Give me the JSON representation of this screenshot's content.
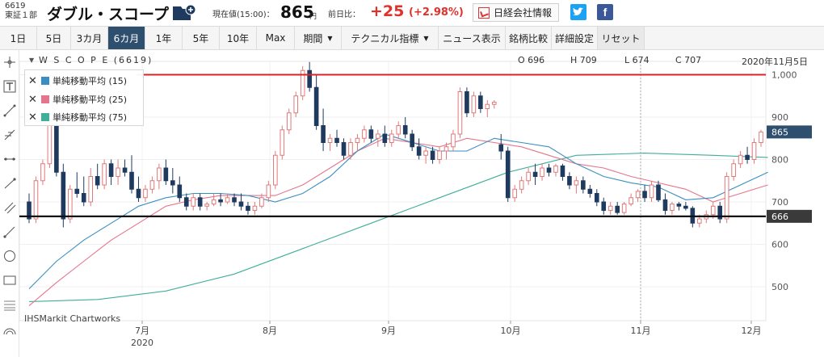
{
  "header": {
    "code": "6619",
    "market": "東証１部",
    "name": "ダブル・スコープ",
    "price_label": "現在値(15:00)：",
    "price": "865",
    "price_unit": "円",
    "change_label": "前日比：",
    "change": "+25",
    "change_pct": "(+2.98%)",
    "news_button": "日経会社情報",
    "twitter_icon": "twitter-icon",
    "facebook_icon": "facebook-icon",
    "colors": {
      "up": "#e0312b",
      "nav_active": "#2f4f6f"
    }
  },
  "toolbar": {
    "items": [
      "1日",
      "5日",
      "3カ月",
      "6カ月",
      "1年",
      "5年",
      "10年",
      "Max",
      "期間",
      "テクニカル指標",
      "ニュース表示",
      "銘柄比較",
      "詳細設定",
      "リセット"
    ],
    "active": "6カ月"
  },
  "tools": [
    "crosshair-icon",
    "text-icon",
    "line-icon",
    "fib-icon",
    "hline-icon",
    "trend-icon",
    "channel-icon",
    "ray-icon",
    "circle-icon",
    "rectangle-icon",
    "fibfan-icon",
    "arc-icon"
  ],
  "chart_ui": {
    "ticker": "W S C O P E (6619)",
    "ohlc": {
      "O": "O 696",
      "H": "H 709",
      "L": "L 674",
      "C": "C 707"
    },
    "date": "2020年11月5日",
    "watermark": "IHSMarkit Chartworks",
    "legend": [
      {
        "label": "単純移動平均 (15)",
        "color": "#3a8fc2"
      },
      {
        "label": "単純移動平均 (25)",
        "color": "#e6748c"
      },
      {
        "label": "単純移動平均 (75)",
        "color": "#3fae9a"
      }
    ]
  },
  "chart_data": {
    "type": "candlestick",
    "ylim": [
      420,
      1020
    ],
    "yticks": [
      "1,000",
      "900",
      "800",
      "700",
      "600",
      "500"
    ],
    "x_months": [
      "7月",
      "8月",
      "9月",
      "10月",
      "11月",
      "12月"
    ],
    "x_year": "2020",
    "current_price": "865",
    "hline_red": 1000,
    "hline_black": 666,
    "hline_black_label": "666",
    "colors": {
      "up": "#e07a7a",
      "down": "#1f3a5f",
      "ma15": "#3a8fc2",
      "ma25": "#e6748c",
      "ma75": "#3fae9a",
      "red_line": "#d8232a"
    },
    "candles": [
      [
        700,
        720,
        650,
        660
      ],
      [
        660,
        760,
        650,
        750
      ],
      [
        750,
        800,
        740,
        790
      ],
      [
        790,
        920,
        780,
        880
      ],
      [
        880,
        900,
        760,
        770
      ],
      [
        770,
        790,
        640,
        660
      ],
      [
        660,
        740,
        650,
        730
      ],
      [
        730,
        770,
        710,
        720
      ],
      [
        720,
        760,
        690,
        700
      ],
      [
        700,
        780,
        690,
        760
      ],
      [
        760,
        790,
        730,
        740
      ],
      [
        740,
        800,
        730,
        790
      ],
      [
        790,
        800,
        740,
        760
      ],
      [
        760,
        800,
        740,
        780
      ],
      [
        780,
        800,
        760,
        770
      ],
      [
        770,
        810,
        720,
        730
      ],
      [
        730,
        760,
        700,
        710
      ],
      [
        710,
        740,
        700,
        730
      ],
      [
        730,
        760,
        720,
        750
      ],
      [
        750,
        790,
        730,
        780
      ],
      [
        780,
        800,
        740,
        750
      ],
      [
        750,
        780,
        720,
        740
      ],
      [
        740,
        760,
        700,
        710
      ],
      [
        710,
        720,
        680,
        690
      ],
      [
        690,
        720,
        680,
        710
      ],
      [
        710,
        720,
        680,
        690
      ],
      [
        690,
        700,
        680,
        695
      ],
      [
        695,
        720,
        690,
        705
      ],
      [
        705,
        720,
        690,
        700
      ],
      [
        700,
        720,
        695,
        710
      ],
      [
        710,
        720,
        690,
        700
      ],
      [
        700,
        720,
        680,
        690
      ],
      [
        690,
        700,
        670,
        680
      ],
      [
        680,
        700,
        670,
        690
      ],
      [
        690,
        720,
        685,
        710
      ],
      [
        710,
        750,
        700,
        740
      ],
      [
        740,
        820,
        730,
        810
      ],
      [
        810,
        880,
        800,
        870
      ],
      [
        870,
        920,
        860,
        910
      ],
      [
        910,
        960,
        900,
        950
      ],
      [
        950,
        1020,
        940,
        1010
      ],
      [
        1010,
        1030,
        960,
        970
      ],
      [
        970,
        1000,
        870,
        880
      ],
      [
        880,
        920,
        820,
        840
      ],
      [
        840,
        860,
        820,
        850
      ],
      [
        850,
        870,
        830,
        840
      ],
      [
        840,
        850,
        800,
        810
      ],
      [
        810,
        850,
        800,
        840
      ],
      [
        840,
        860,
        820,
        850
      ],
      [
        850,
        880,
        840,
        870
      ],
      [
        870,
        880,
        840,
        850
      ],
      [
        850,
        870,
        830,
        860
      ],
      [
        860,
        880,
        830,
        840
      ],
      [
        840,
        870,
        830,
        860
      ],
      [
        860,
        890,
        850,
        880
      ],
      [
        880,
        900,
        850,
        860
      ],
      [
        860,
        870,
        820,
        830
      ],
      [
        830,
        850,
        800,
        810
      ],
      [
        810,
        830,
        790,
        820
      ],
      [
        820,
        830,
        790,
        800
      ],
      [
        800,
        830,
        790,
        820
      ],
      [
        820,
        840,
        800,
        830
      ],
      [
        830,
        870,
        820,
        860
      ],
      [
        860,
        970,
        850,
        960
      ],
      [
        960,
        970,
        900,
        910
      ],
      [
        910,
        960,
        900,
        950
      ],
      [
        950,
        960,
        910,
        920
      ],
      [
        920,
        940,
        900,
        930
      ],
      [
        930,
        940,
        920,
        935
      ],
      [
        835,
        860,
        800,
        820
      ],
      [
        820,
        830,
        700,
        710
      ],
      [
        710,
        740,
        700,
        730
      ],
      [
        730,
        760,
        720,
        750
      ],
      [
        750,
        780,
        740,
        770
      ],
      [
        770,
        790,
        740,
        760
      ],
      [
        760,
        790,
        750,
        780
      ],
      [
        780,
        790,
        760,
        770
      ],
      [
        770,
        790,
        760,
        785
      ],
      [
        785,
        790,
        750,
        760
      ],
      [
        760,
        770,
        730,
        740
      ],
      [
        740,
        760,
        720,
        750
      ],
      [
        750,
        760,
        720,
        730
      ],
      [
        730,
        740,
        710,
        720
      ],
      [
        720,
        730,
        690,
        700
      ],
      [
        700,
        710,
        670,
        680
      ],
      [
        680,
        700,
        670,
        690
      ],
      [
        690,
        700,
        670,
        675
      ],
      [
        675,
        700,
        670,
        695
      ],
      [
        695,
        720,
        690,
        710
      ],
      [
        710,
        730,
        700,
        725
      ],
      [
        725,
        740,
        700,
        710
      ],
      [
        710,
        750,
        700,
        740
      ],
      [
        740,
        750,
        700,
        705
      ],
      [
        705,
        720,
        670,
        680
      ],
      [
        680,
        700,
        670,
        695
      ],
      [
        695,
        700,
        680,
        690
      ],
      [
        690,
        700,
        680,
        685
      ],
      [
        685,
        690,
        640,
        650
      ],
      [
        650,
        670,
        640,
        660
      ],
      [
        660,
        680,
        650,
        670
      ],
      [
        670,
        700,
        660,
        690
      ],
      [
        690,
        700,
        650,
        660
      ],
      [
        660,
        770,
        650,
        760
      ],
      [
        760,
        800,
        750,
        790
      ],
      [
        790,
        820,
        780,
        810
      ],
      [
        810,
        830,
        790,
        800
      ],
      [
        800,
        850,
        790,
        840
      ],
      [
        840,
        870,
        830,
        865
      ]
    ],
    "ma15": [
      [
        0,
        495
      ],
      [
        4,
        560
      ],
      [
        8,
        610
      ],
      [
        12,
        650
      ],
      [
        16,
        690
      ],
      [
        20,
        710
      ],
      [
        24,
        720
      ],
      [
        28,
        720
      ],
      [
        32,
        715
      ],
      [
        36,
        700
      ],
      [
        40,
        720
      ],
      [
        44,
        760
      ],
      [
        48,
        820
      ],
      [
        52,
        860
      ],
      [
        56,
        840
      ],
      [
        60,
        820
      ],
      [
        64,
        820
      ],
      [
        68,
        850
      ],
      [
        72,
        840
      ],
      [
        76,
        830
      ],
      [
        80,
        790
      ],
      [
        84,
        760
      ],
      [
        88,
        745
      ],
      [
        92,
        735
      ],
      [
        96,
        705
      ],
      [
        100,
        710
      ],
      [
        104,
        740
      ],
      [
        108,
        770
      ]
    ],
    "ma25": [
      [
        0,
        455
      ],
      [
        4,
        510
      ],
      [
        8,
        560
      ],
      [
        12,
        610
      ],
      [
        16,
        650
      ],
      [
        20,
        690
      ],
      [
        24,
        705
      ],
      [
        28,
        715
      ],
      [
        32,
        715
      ],
      [
        36,
        715
      ],
      [
        40,
        740
      ],
      [
        44,
        780
      ],
      [
        48,
        820
      ],
      [
        52,
        850
      ],
      [
        56,
        840
      ],
      [
        60,
        830
      ],
      [
        64,
        850
      ],
      [
        68,
        840
      ],
      [
        72,
        830
      ],
      [
        76,
        810
      ],
      [
        80,
        790
      ],
      [
        84,
        780
      ],
      [
        88,
        760
      ],
      [
        92,
        745
      ],
      [
        96,
        730
      ],
      [
        100,
        700
      ],
      [
        104,
        720
      ],
      [
        108,
        740
      ]
    ],
    "ma75": [
      [
        0,
        465
      ],
      [
        10,
        470
      ],
      [
        20,
        490
      ],
      [
        30,
        530
      ],
      [
        40,
        590
      ],
      [
        50,
        650
      ],
      [
        60,
        710
      ],
      [
        70,
        770
      ],
      [
        75,
        790
      ],
      [
        80,
        810
      ],
      [
        90,
        815
      ],
      [
        100,
        810
      ],
      [
        108,
        805
      ]
    ]
  }
}
